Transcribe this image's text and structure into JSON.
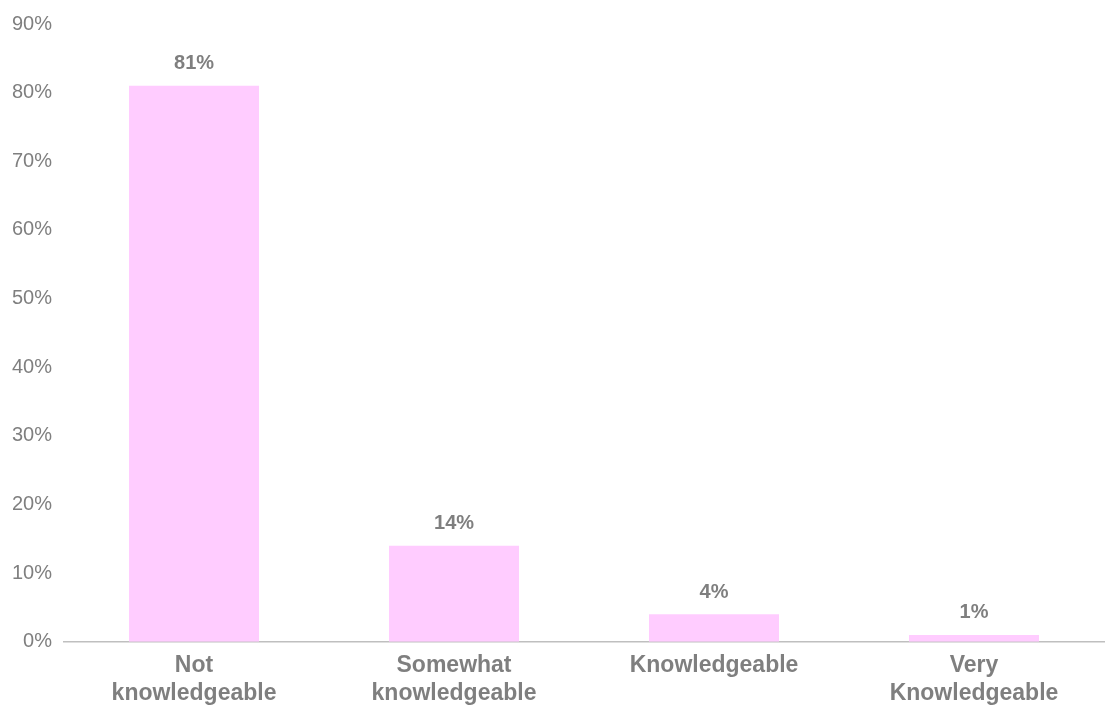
{
  "chart_data": {
    "type": "bar",
    "categories": [
      "Not knowledgeable",
      "Somewhat knowledgeable",
      "Knowledgeable",
      "Very Knowledgeable"
    ],
    "values": [
      81,
      14,
      4,
      1
    ],
    "value_labels": [
      "81%",
      "14%",
      "4%",
      "1%"
    ],
    "color": "#ffccff",
    "ylim": [
      0,
      90
    ],
    "yticks": [
      {
        "value": 0,
        "label": "0%"
      },
      {
        "value": 10,
        "label": "10%"
      },
      {
        "value": 20,
        "label": "20%"
      },
      {
        "value": 30,
        "label": "30%"
      },
      {
        "value": 40,
        "label": "40%"
      },
      {
        "value": 50,
        "label": "50%"
      },
      {
        "value": 60,
        "label": "60%"
      },
      {
        "value": 70,
        "label": "70%"
      },
      {
        "value": 80,
        "label": "80%"
      },
      {
        "value": 90,
        "label": "90%"
      }
    ],
    "grid": false,
    "legend": false
  }
}
